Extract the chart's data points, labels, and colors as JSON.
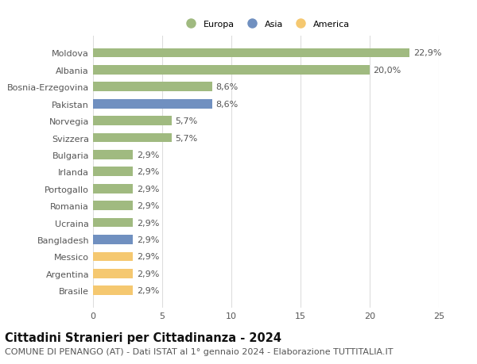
{
  "categories": [
    "Brasile",
    "Argentina",
    "Messico",
    "Bangladesh",
    "Ucraina",
    "Romania",
    "Portogallo",
    "Irlanda",
    "Bulgaria",
    "Svizzera",
    "Norvegia",
    "Pakistan",
    "Bosnia-Erzegovina",
    "Albania",
    "Moldova"
  ],
  "values": [
    2.9,
    2.9,
    2.9,
    2.9,
    2.9,
    2.9,
    2.9,
    2.9,
    2.9,
    5.7,
    5.7,
    8.6,
    8.6,
    20.0,
    22.9
  ],
  "colors": [
    "#f5c870",
    "#f5c870",
    "#f5c870",
    "#7090c0",
    "#a0ba80",
    "#a0ba80",
    "#a0ba80",
    "#a0ba80",
    "#a0ba80",
    "#a0ba80",
    "#a0ba80",
    "#7090c0",
    "#a0ba80",
    "#a0ba80",
    "#a0ba80"
  ],
  "labels": [
    "2,9%",
    "2,9%",
    "2,9%",
    "2,9%",
    "2,9%",
    "2,9%",
    "2,9%",
    "2,9%",
    "2,9%",
    "5,7%",
    "5,7%",
    "8,6%",
    "8,6%",
    "20,0%",
    "22,9%"
  ],
  "xlim": [
    0,
    25
  ],
  "xticks": [
    0,
    5,
    10,
    15,
    20,
    25
  ],
  "legend_labels": [
    "Europa",
    "Asia",
    "America"
  ],
  "legend_colors": [
    "#a0ba80",
    "#7090c0",
    "#f5c870"
  ],
  "title": "Cittadini Stranieri per Cittadinanza - 2024",
  "subtitle": "COMUNE DI PENANGO (AT) - Dati ISTAT al 1° gennaio 2024 - Elaborazione TUTTITALIA.IT",
  "bg_color": "#ffffff",
  "grid_color": "#dddddd",
  "bar_height": 0.55,
  "title_fontsize": 10.5,
  "subtitle_fontsize": 8,
  "tick_fontsize": 8,
  "label_fontsize": 8,
  "label_color": "#555555",
  "tick_color": "#555555"
}
